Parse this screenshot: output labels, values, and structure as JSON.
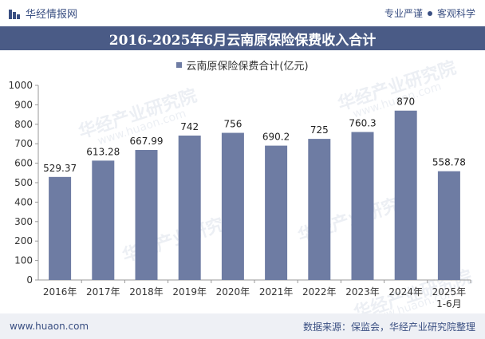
{
  "header": {
    "brand": "华经情报网",
    "motto_left": "专业严谨",
    "motto_right": "客观科学"
  },
  "watermark": {
    "text": "华经产业研究院",
    "url": "www.huaon.com"
  },
  "footer": {
    "website": "www.huaon.com",
    "source": "数据来源：保监会，华经产业研究院整理"
  },
  "colors": {
    "bar": "#6e7ca3",
    "title_band": "#4a5b86",
    "brand": "#3a4f82"
  },
  "chart_data": {
    "type": "bar",
    "title": "2016-2025年6月云南原保险保费收入合计",
    "legend": [
      "云南原保险保费合计(亿元)"
    ],
    "categories": [
      "2016年",
      "2017年",
      "2018年",
      "2019年",
      "2020年",
      "2021年",
      "2022年",
      "2023年",
      "2024年",
      "2025年\n1-6月"
    ],
    "series": [
      {
        "name": "云南原保险保费合计(亿元)",
        "values": [
          529.37,
          613.28,
          667.99,
          742,
          756,
          690.2,
          725,
          760.3,
          870,
          558.78
        ],
        "labels": [
          "529.37",
          "613.28",
          "667.99",
          "742",
          "756",
          "690.2",
          "725",
          "760.3",
          "870",
          "558.78"
        ]
      }
    ],
    "ylim": [
      0,
      1000
    ],
    "yticks": [
      0,
      100,
      200,
      300,
      400,
      500,
      600,
      700,
      800,
      900,
      1000
    ],
    "grid": false,
    "legend_position": "top-center"
  }
}
